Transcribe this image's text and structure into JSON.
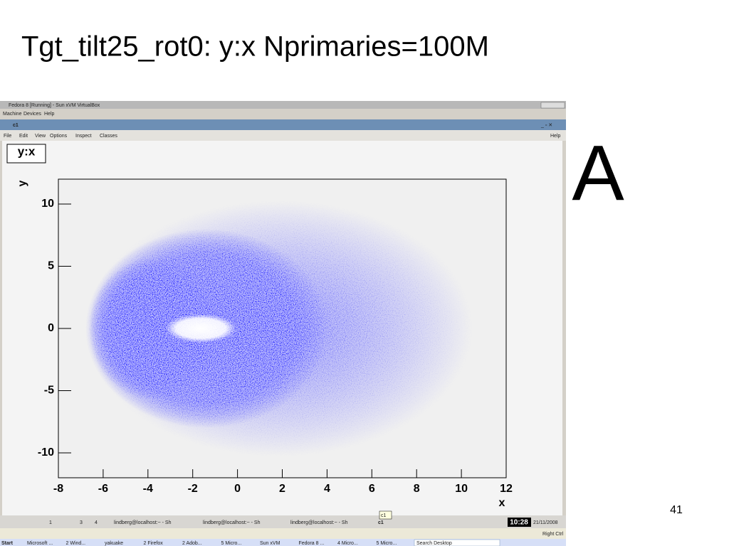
{
  "slide": {
    "title": "Tgt_tilt25_rot0:   y:x   Nprimaries=100M",
    "marker": "A",
    "page_number": "41"
  },
  "vm_window": {
    "title": "Fedora 8 [Running] - Sun xVM VirtualBox",
    "menu": [
      "Machine",
      "Devices",
      "Help"
    ]
  },
  "canvas_window": {
    "title": "c1",
    "menu": [
      "File",
      "Edit",
      "View",
      "Options",
      "Inspect",
      "Classes"
    ],
    "help": "Help"
  },
  "chart_data": {
    "type": "scatter",
    "title": "y:x",
    "x_label": "x",
    "y_label": "y",
    "color": "#0000ff",
    "xlim": [
      -8,
      12
    ],
    "ylim": [
      -12,
      12
    ],
    "xticks": [
      -8,
      -6,
      -4,
      -2,
      0,
      2,
      4,
      6,
      8,
      10,
      12
    ],
    "yticks": [
      -10,
      -5,
      0,
      5,
      10
    ]
  },
  "taskbar": {
    "desktops": [
      "1",
      "3",
      "4"
    ],
    "tasks": [
      "lindberg@localhost:~ - Sh",
      "lindberg@localhost:~ - Sh",
      "lindberg@localhost:~ - Sh",
      "c1"
    ],
    "tooltip": "c1",
    "clock": "10:28",
    "date": "21/11/2008",
    "host_key": "Right Ctrl",
    "windows_items": [
      "Start",
      "Microsoft ...",
      "2 Wind...",
      "yakuake",
      "2 Firefox",
      "2 Adob...",
      "5 Micro...",
      "Sun xVM",
      "Fedora 8 ...",
      "4 Micro...",
      "5 Micro..."
    ],
    "search": "Search Desktop"
  }
}
